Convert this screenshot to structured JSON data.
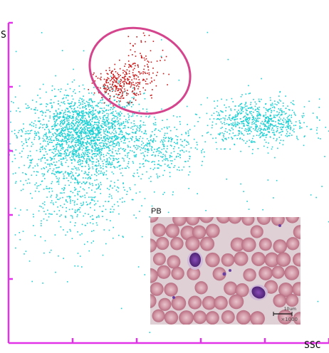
{
  "chart_data": {
    "type": "scatter",
    "title": "",
    "xlabel": "SSC",
    "ylabel": "S",
    "xlim": [
      0,
      10
    ],
    "ylim": [
      0,
      10
    ],
    "x_ticks": [
      2,
      4,
      6,
      8,
      10
    ],
    "y_ticks": [
      2,
      4,
      6,
      8,
      10
    ],
    "grid": false,
    "legend": "none",
    "series": [
      {
        "color": "#19cfd3",
        "clusters": [
          {
            "center": [
              2.4,
              6.6
            ],
            "spread": [
              0.9,
              0.6
            ],
            "count": 1700
          },
          {
            "center": [
              2.0,
              5.2
            ],
            "spread": [
              0.9,
              1.1
            ],
            "count": 700
          },
          {
            "center": [
              4.8,
              6.1
            ],
            "spread": [
              0.5,
              0.45
            ],
            "count": 250
          },
          {
            "center": [
              7.8,
              6.9
            ],
            "spread": [
              0.8,
              0.35
            ],
            "count": 700
          },
          {
            "center": [
              5.0,
              5.0
            ],
            "spread": [
              4.5,
              3.0
            ],
            "count": 160
          }
        ]
      },
      {
        "color": "#c81414",
        "clusters": [
          {
            "center": [
              3.5,
              8.1
            ],
            "spread": [
              0.4,
              0.25
            ],
            "count": 260
          },
          {
            "center": [
              4.2,
              8.8
            ],
            "spread": [
              0.35,
              0.45
            ],
            "count": 90
          }
        ]
      }
    ],
    "gate": {
      "shape": "ellipse",
      "center": [
        4.1,
        8.5
      ],
      "radii": [
        1.6,
        1.3
      ],
      "color": "#d4458e"
    }
  },
  "axes": {
    "x_label": "SSC",
    "y_label_fragment": "S",
    "color": "#e233e8"
  },
  "inset": {
    "label": "PB",
    "scale_text": "10um",
    "magnification": "×1000"
  }
}
